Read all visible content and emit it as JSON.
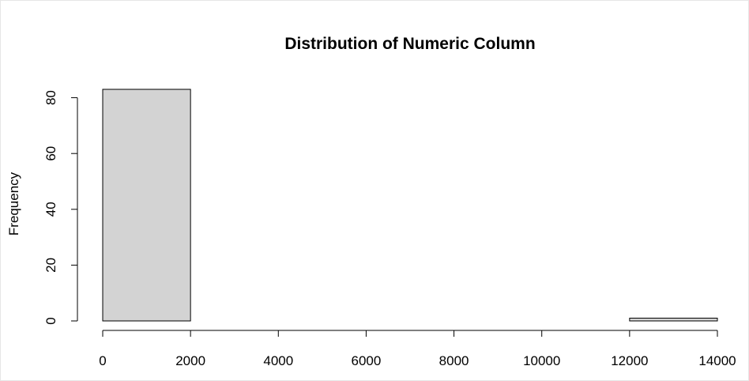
{
  "chart_data": {
    "type": "bar",
    "title": "Distribution of Numeric Column",
    "xlabel": "",
    "ylabel": "Frequency",
    "bins": [
      {
        "start": 0,
        "end": 2000,
        "count": 83
      },
      {
        "start": 2000,
        "end": 4000,
        "count": 0
      },
      {
        "start": 4000,
        "end": 6000,
        "count": 0
      },
      {
        "start": 6000,
        "end": 8000,
        "count": 0
      },
      {
        "start": 8000,
        "end": 10000,
        "count": 0
      },
      {
        "start": 10000,
        "end": 12000,
        "count": 0
      },
      {
        "start": 12000,
        "end": 14000,
        "count": 1
      }
    ],
    "xlim": [
      0,
      14000
    ],
    "ylim": [
      0,
      83
    ],
    "x_ticks": [
      0,
      2000,
      4000,
      6000,
      8000,
      10000,
      12000,
      14000
    ],
    "y_ticks": [
      0,
      20,
      40,
      60,
      80
    ],
    "bar_fill": "#d3d3d3",
    "bar_stroke": "#000000",
    "grid": false,
    "legend": "none"
  }
}
